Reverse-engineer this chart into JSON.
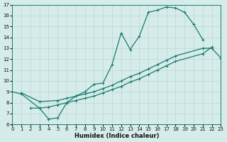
{
  "xlabel": "Humidex (Indice chaleur)",
  "background_color": "#d6ecea",
  "grid_color": "#b8d8d4",
  "line_color": "#1a7a6e",
  "xlim": [
    0,
    23
  ],
  "ylim": [
    6,
    17
  ],
  "xticks": [
    0,
    1,
    2,
    3,
    4,
    5,
    6,
    7,
    8,
    9,
    10,
    11,
    12,
    13,
    14,
    15,
    16,
    17,
    18,
    19,
    20,
    21,
    22,
    23
  ],
  "yticks": [
    6,
    7,
    8,
    9,
    10,
    11,
    12,
    13,
    14,
    15,
    16,
    17
  ],
  "line1_x": [
    0,
    1,
    3,
    4,
    5,
    6,
    7,
    8,
    9,
    10,
    11,
    12,
    13,
    14,
    15,
    16,
    17,
    18,
    19,
    20,
    21
  ],
  "line1_y": [
    9.0,
    8.8,
    7.5,
    6.5,
    6.6,
    8.0,
    8.6,
    9.0,
    9.7,
    9.8,
    11.5,
    14.4,
    12.9,
    14.1,
    16.3,
    16.5,
    16.8,
    16.7,
    16.3,
    15.2,
    13.8
  ],
  "line2_x": [
    1,
    3,
    5,
    6,
    7,
    8,
    9,
    10,
    11,
    12,
    13,
    14,
    15,
    16,
    17,
    18,
    21,
    22,
    23
  ],
  "line2_y": [
    8.9,
    8.1,
    8.2,
    8.4,
    8.6,
    8.8,
    9.0,
    9.3,
    9.6,
    10.0,
    10.4,
    10.7,
    11.1,
    11.5,
    11.9,
    12.3,
    13.0,
    13.0,
    12.1
  ],
  "line3_x": [
    2,
    3,
    4,
    5,
    6,
    7,
    8,
    9,
    10,
    11,
    12,
    13,
    14,
    15,
    16,
    17,
    18,
    21,
    22
  ],
  "line3_y": [
    7.5,
    7.5,
    7.6,
    7.8,
    8.0,
    8.2,
    8.4,
    8.6,
    8.9,
    9.2,
    9.5,
    9.9,
    10.2,
    10.6,
    11.0,
    11.4,
    11.8,
    12.5,
    13.1
  ],
  "markersize": 2.5,
  "linewidth": 0.9
}
